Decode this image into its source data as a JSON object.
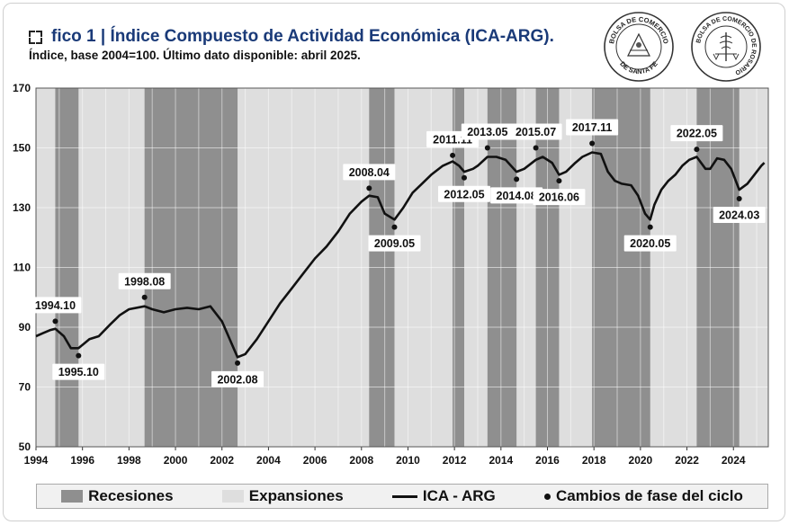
{
  "header": {
    "title": "fico 1 | Índice Compuesto de Actividad Económica (ICA-ARG).",
    "subtitle": "Índice, base 2004=100. Último dato disponible: abril 2025."
  },
  "logos": [
    {
      "text_top": "BOLSA DE COMERCIO",
      "text_bottom": "DE SANTA FE"
    },
    {
      "text_top": "BOLSA DE COMERCIO DE ROSARIO"
    }
  ],
  "legend": {
    "recessions": "Recesiones",
    "expansions": "Expansiones",
    "line": "ICA - ARG",
    "points": "Cambios de fase del ciclo"
  },
  "colors": {
    "recession": "#8f8f8f",
    "expansion": "#dedede",
    "line": "#111111",
    "label_bg": "#ffffff"
  },
  "chart_data": {
    "type": "line",
    "xlim": [
      1994,
      2025.5
    ],
    "ylim": [
      50,
      170
    ],
    "xticks": [
      "1994",
      "1996",
      "1998",
      "2000",
      "2002",
      "2004",
      "2006",
      "2008",
      "2010",
      "2012",
      "2014",
      "2016",
      "2018",
      "2020",
      "2022",
      "2024"
    ],
    "yticks": [
      "50",
      "70",
      "90",
      "110",
      "130",
      "150",
      "170"
    ],
    "grid": true,
    "legend_position": "bottom",
    "recessions": [
      [
        1994.83,
        1995.83
      ],
      [
        1998.67,
        2002.67
      ],
      [
        2008.33,
        2009.42
      ],
      [
        2011.92,
        2012.42
      ],
      [
        2013.42,
        2014.67
      ],
      [
        2015.5,
        2016.5
      ],
      [
        2017.92,
        2020.42
      ],
      [
        2022.42,
        2024.25
      ]
    ],
    "series": [
      {
        "name": "ICA - ARG",
        "x": [
          1994.0,
          1994.3,
          1994.6,
          1994.83,
          1995.2,
          1995.5,
          1995.83,
          1996.3,
          1996.7,
          1997.2,
          1997.6,
          1998.0,
          1998.67,
          1999.0,
          1999.5,
          2000.0,
          2000.5,
          2001.0,
          2001.5,
          2002.0,
          2002.67,
          2003.0,
          2003.5,
          2004.0,
          2004.5,
          2005.0,
          2005.5,
          2006.0,
          2006.5,
          2007.0,
          2007.5,
          2008.0,
          2008.33,
          2008.7,
          2009.0,
          2009.42,
          2009.8,
          2010.2,
          2010.6,
          2011.0,
          2011.5,
          2011.92,
          2012.2,
          2012.42,
          2012.8,
          2013.0,
          2013.42,
          2013.8,
          2014.2,
          2014.67,
          2015.0,
          2015.5,
          2015.8,
          2016.2,
          2016.5,
          2016.8,
          2017.2,
          2017.5,
          2017.92,
          2018.3,
          2018.6,
          2018.9,
          2019.2,
          2019.6,
          2019.9,
          2020.2,
          2020.42,
          2020.6,
          2020.9,
          2021.2,
          2021.5,
          2021.8,
          2022.1,
          2022.42,
          2022.8,
          2023.0,
          2023.3,
          2023.6,
          2023.9,
          2024.25,
          2024.6,
          2024.9,
          2025.2,
          2025.33
        ],
        "values": [
          87,
          88,
          89,
          89.5,
          87,
          83,
          83,
          86,
          87,
          91,
          94,
          96,
          97,
          96,
          95,
          96,
          96.5,
          96,
          97,
          92,
          80,
          81,
          86,
          92,
          98,
          103,
          108,
          113,
          117,
          122,
          128,
          132,
          134,
          133.5,
          128,
          126,
          130,
          135,
          138,
          141,
          144,
          145.5,
          144,
          142,
          143,
          144,
          147,
          147,
          146,
          142,
          143,
          146,
          147,
          145,
          141,
          142,
          145,
          147,
          148.5,
          148,
          142,
          139,
          138,
          137.5,
          134,
          128,
          126,
          131,
          136,
          139,
          141,
          144,
          146,
          147,
          143,
          143,
          146.5,
          146,
          143,
          136,
          138,
          141,
          144,
          145
        ]
      }
    ],
    "phase_changes": [
      {
        "label": "1994.10",
        "x": 1994.83,
        "y": 92,
        "pos": "above"
      },
      {
        "label": "1995.10",
        "x": 1995.83,
        "y": 80.5,
        "pos": "below"
      },
      {
        "label": "1998.08",
        "x": 1998.67,
        "y": 100,
        "pos": "above"
      },
      {
        "label": "2002.08",
        "x": 2002.67,
        "y": 78,
        "pos": "below"
      },
      {
        "label": "2008.04",
        "x": 2008.33,
        "y": 136.5,
        "pos": "above"
      },
      {
        "label": "2009.05",
        "x": 2009.42,
        "y": 123.5,
        "pos": "below"
      },
      {
        "label": "2011.11",
        "x": 2011.92,
        "y": 147.5,
        "pos": "above"
      },
      {
        "label": "2012.05",
        "x": 2012.42,
        "y": 140,
        "pos": "below"
      },
      {
        "label": "2013.05",
        "x": 2013.42,
        "y": 150,
        "pos": "above"
      },
      {
        "label": "2014.08",
        "x": 2014.67,
        "y": 139.5,
        "pos": "below"
      },
      {
        "label": "2015.07",
        "x": 2015.5,
        "y": 150,
        "pos": "above"
      },
      {
        "label": "2016.06",
        "x": 2016.5,
        "y": 139,
        "pos": "below"
      },
      {
        "label": "2017.11",
        "x": 2017.92,
        "y": 151.5,
        "pos": "above"
      },
      {
        "label": "2020.05",
        "x": 2020.42,
        "y": 123.5,
        "pos": "below"
      },
      {
        "label": "2022.05",
        "x": 2022.42,
        "y": 149.5,
        "pos": "above"
      },
      {
        "label": "2024.03",
        "x": 2024.25,
        "y": 133,
        "pos": "below"
      }
    ]
  }
}
